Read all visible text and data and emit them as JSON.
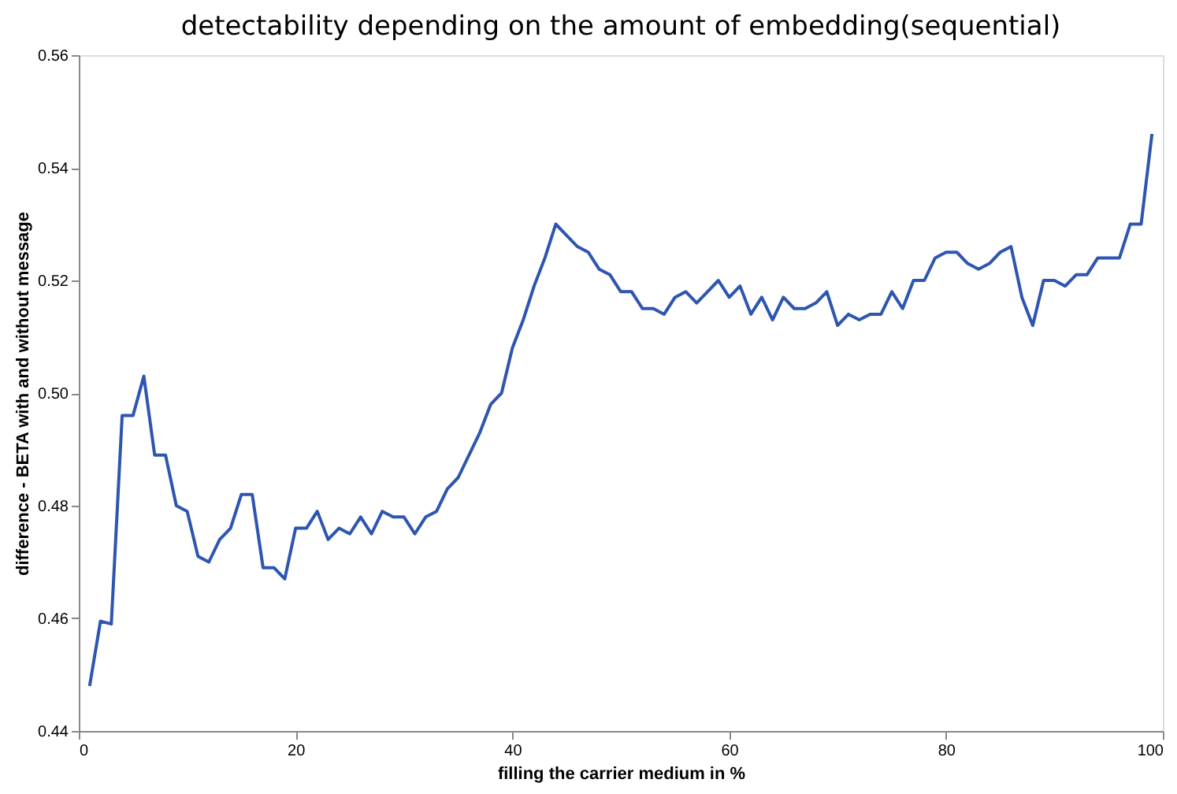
{
  "chart_data": {
    "type": "line",
    "title": "detectability depending on the amount of embedding(sequential)",
    "xlabel": "filling the carrier medium in %",
    "ylabel": "difference - BETA with and without message",
    "x": [
      1,
      2,
      3,
      4,
      5,
      6,
      7,
      8,
      9,
      10,
      11,
      12,
      13,
      14,
      15,
      16,
      17,
      18,
      19,
      20,
      21,
      22,
      23,
      24,
      25,
      26,
      27,
      28,
      29,
      30,
      31,
      32,
      33,
      34,
      35,
      36,
      37,
      38,
      39,
      40,
      41,
      42,
      43,
      44,
      45,
      46,
      47,
      48,
      49,
      50,
      51,
      52,
      53,
      54,
      55,
      56,
      57,
      58,
      59,
      60,
      61,
      62,
      63,
      64,
      65,
      66,
      67,
      68,
      69,
      70,
      71,
      72,
      73,
      74,
      75,
      76,
      77,
      78,
      79,
      80,
      81,
      82,
      83,
      84,
      85,
      86,
      87,
      88,
      89,
      90,
      91,
      92,
      93,
      94,
      95,
      96,
      97,
      98,
      99
    ],
    "series": [
      {
        "color": "#2e55b0",
        "values": [
          0.448,
          0.4595,
          0.459,
          0.496,
          0.496,
          0.503,
          0.489,
          0.489,
          0.48,
          0.479,
          0.471,
          0.47,
          0.474,
          0.476,
          0.482,
          0.482,
          0.469,
          0.469,
          0.467,
          0.476,
          0.476,
          0.479,
          0.474,
          0.476,
          0.475,
          0.478,
          0.475,
          0.479,
          0.478,
          0.478,
          0.475,
          0.478,
          0.479,
          0.483,
          0.485,
          0.489,
          0.493,
          0.498,
          0.5,
          0.508,
          0.513,
          0.519,
          0.524,
          0.53,
          0.528,
          0.526,
          0.525,
          0.522,
          0.521,
          0.518,
          0.518,
          0.515,
          0.515,
          0.514,
          0.517,
          0.518,
          0.516,
          0.518,
          0.52,
          0.517,
          0.519,
          0.514,
          0.517,
          0.513,
          0.517,
          0.515,
          0.515,
          0.516,
          0.518,
          0.512,
          0.514,
          0.513,
          0.514,
          0.514,
          0.518,
          0.515,
          0.52,
          0.52,
          0.524,
          0.525,
          0.525,
          0.523,
          0.522,
          0.523,
          0.525,
          0.526,
          0.517,
          0.512,
          0.52,
          0.52,
          0.519,
          0.521,
          0.521,
          0.524,
          0.524,
          0.524,
          0.53,
          0.53,
          0.546
        ]
      }
    ],
    "xlim": [
      0,
      100
    ],
    "xticks": [
      0,
      20,
      40,
      60,
      80,
      100
    ],
    "ylim": [
      0.44,
      0.56
    ],
    "yticks": [
      {
        "value": 0.44,
        "label": "0.44"
      },
      {
        "value": 0.46,
        "label": "0.46"
      },
      {
        "value": 0.48,
        "label": "0.48"
      },
      {
        "value": 0.5,
        "label": "0.50"
      },
      {
        "value": 0.52,
        "label": "0.52"
      },
      {
        "value": 0.54,
        "label": "0.54"
      },
      {
        "value": 0.56,
        "label": "0.56"
      }
    ],
    "grid": false,
    "legend": false,
    "marker": "none",
    "line_style": "solid"
  }
}
